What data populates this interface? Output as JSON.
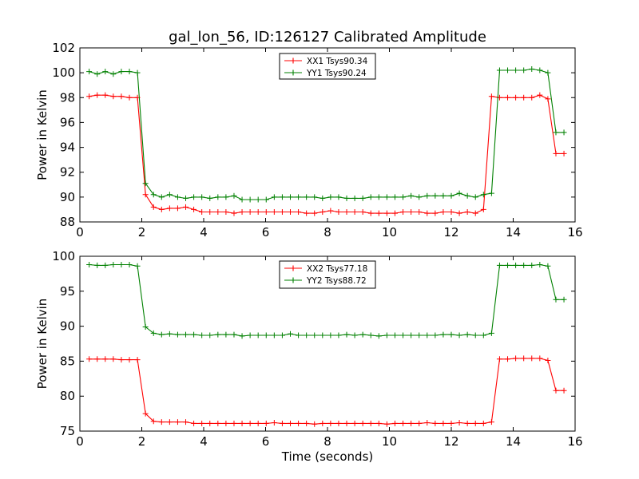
{
  "figure": {
    "title": "gal_lon_56, ID:126127 Calibrated Amplitude",
    "xlabel": "Time (seconds)"
  },
  "colors": {
    "red": "#ff0000",
    "green": "#008000"
  },
  "chart_data": [
    {
      "type": "line",
      "title": "gal_lon_56, ID:126127 Calibrated Amplitude",
      "xlabel": "",
      "ylabel": "Power in Kelvin",
      "xlim": [
        0,
        16
      ],
      "ylim": [
        88,
        102
      ],
      "xticks": [
        0,
        2,
        4,
        6,
        8,
        10,
        12,
        14,
        16
      ],
      "yticks": [
        88,
        90,
        92,
        94,
        96,
        98,
        100,
        102
      ],
      "grid": false,
      "legend": "top-center",
      "marker": "+",
      "x": [
        0.3,
        0.56,
        0.82,
        1.08,
        1.34,
        1.6,
        1.86,
        2.12,
        2.38,
        2.64,
        2.9,
        3.16,
        3.42,
        3.68,
        3.94,
        4.2,
        4.46,
        4.72,
        4.98,
        5.24,
        5.5,
        5.76,
        6.02,
        6.28,
        6.54,
        6.8,
        7.06,
        7.32,
        7.58,
        7.84,
        8.1,
        8.36,
        8.62,
        8.88,
        9.14,
        9.4,
        9.66,
        9.92,
        10.18,
        10.44,
        10.7,
        10.96,
        11.22,
        11.48,
        11.74,
        12.0,
        12.26,
        12.52,
        12.78,
        13.04,
        13.3,
        13.56,
        13.82,
        14.08,
        14.34,
        14.6,
        14.86,
        15.12,
        15.38,
        15.64
      ],
      "series": [
        {
          "name": "XX1 Tsys90.34",
          "color": "#ff0000",
          "values": [
            98.1,
            98.2,
            98.2,
            98.1,
            98.1,
            98.0,
            98.0,
            90.2,
            89.2,
            89.0,
            89.1,
            89.1,
            89.2,
            89.0,
            88.8,
            88.8,
            88.8,
            88.8,
            88.7,
            88.8,
            88.8,
            88.8,
            88.8,
            88.8,
            88.8,
            88.8,
            88.8,
            88.7,
            88.7,
            88.8,
            88.9,
            88.8,
            88.8,
            88.8,
            88.8,
            88.7,
            88.7,
            88.7,
            88.7,
            88.8,
            88.8,
            88.8,
            88.7,
            88.7,
            88.8,
            88.8,
            88.7,
            88.8,
            88.7,
            89.0,
            98.1,
            98.0,
            98.0,
            98.0,
            98.0,
            98.0,
            98.2,
            97.9,
            93.5,
            93.5
          ]
        },
        {
          "name": "YY1 Tsys90.24",
          "color": "#008000",
          "values": [
            100.1,
            99.9,
            100.1,
            99.9,
            100.1,
            100.1,
            100.0,
            91.1,
            90.2,
            90.0,
            90.2,
            90.0,
            89.9,
            90.0,
            90.0,
            89.9,
            90.0,
            90.0,
            90.1,
            89.8,
            89.8,
            89.8,
            89.8,
            90.0,
            90.0,
            90.0,
            90.0,
            90.0,
            90.0,
            89.9,
            90.0,
            90.0,
            89.9,
            89.9,
            89.9,
            90.0,
            90.0,
            90.0,
            90.0,
            90.0,
            90.1,
            90.0,
            90.1,
            90.1,
            90.1,
            90.1,
            90.3,
            90.1,
            90.0,
            90.2,
            90.3,
            100.2,
            100.2,
            100.2,
            100.2,
            100.3,
            100.2,
            100.0,
            95.2,
            95.2
          ]
        }
      ]
    },
    {
      "type": "line",
      "title": "",
      "xlabel": "Time (seconds)",
      "ylabel": "Power in Kelvin",
      "xlim": [
        0,
        16
      ],
      "ylim": [
        75,
        100
      ],
      "xticks": [
        0,
        2,
        4,
        6,
        8,
        10,
        12,
        14,
        16
      ],
      "yticks": [
        75,
        80,
        85,
        90,
        95,
        100
      ],
      "grid": false,
      "legend": "top-center",
      "marker": "+",
      "x": [
        0.3,
        0.56,
        0.82,
        1.08,
        1.34,
        1.6,
        1.86,
        2.12,
        2.38,
        2.64,
        2.9,
        3.16,
        3.42,
        3.68,
        3.94,
        4.2,
        4.46,
        4.72,
        4.98,
        5.24,
        5.5,
        5.76,
        6.02,
        6.28,
        6.54,
        6.8,
        7.06,
        7.32,
        7.58,
        7.84,
        8.1,
        8.36,
        8.62,
        8.88,
        9.14,
        9.4,
        9.66,
        9.92,
        10.18,
        10.44,
        10.7,
        10.96,
        11.22,
        11.48,
        11.74,
        12.0,
        12.26,
        12.52,
        12.78,
        13.04,
        13.3,
        13.56,
        13.82,
        14.08,
        14.34,
        14.6,
        14.86,
        15.12,
        15.38,
        15.64
      ],
      "series": [
        {
          "name": "XX2 Tsys77.18",
          "color": "#ff0000",
          "values": [
            85.3,
            85.3,
            85.3,
            85.3,
            85.2,
            85.2,
            85.2,
            77.5,
            76.4,
            76.3,
            76.3,
            76.3,
            76.3,
            76.1,
            76.1,
            76.1,
            76.1,
            76.1,
            76.1,
            76.1,
            76.1,
            76.1,
            76.1,
            76.2,
            76.1,
            76.1,
            76.1,
            76.1,
            76.0,
            76.1,
            76.1,
            76.1,
            76.1,
            76.1,
            76.1,
            76.1,
            76.1,
            76.0,
            76.1,
            76.1,
            76.1,
            76.1,
            76.2,
            76.1,
            76.1,
            76.1,
            76.2,
            76.1,
            76.1,
            76.1,
            76.3,
            85.3,
            85.3,
            85.4,
            85.4,
            85.4,
            85.4,
            85.1,
            80.8,
            80.8
          ]
        },
        {
          "name": "YY2 Tsys88.72",
          "color": "#008000",
          "values": [
            98.8,
            98.7,
            98.7,
            98.8,
            98.8,
            98.8,
            98.6,
            89.9,
            89.0,
            88.8,
            88.9,
            88.8,
            88.8,
            88.8,
            88.7,
            88.7,
            88.8,
            88.8,
            88.8,
            88.6,
            88.7,
            88.7,
            88.7,
            88.7,
            88.7,
            88.9,
            88.7,
            88.7,
            88.7,
            88.7,
            88.7,
            88.7,
            88.8,
            88.7,
            88.8,
            88.7,
            88.6,
            88.7,
            88.7,
            88.7,
            88.7,
            88.7,
            88.7,
            88.7,
            88.8,
            88.8,
            88.7,
            88.8,
            88.7,
            88.7,
            89.0,
            98.7,
            98.7,
            98.7,
            98.7,
            98.7,
            98.8,
            98.6,
            93.8,
            93.8
          ]
        }
      ]
    }
  ]
}
